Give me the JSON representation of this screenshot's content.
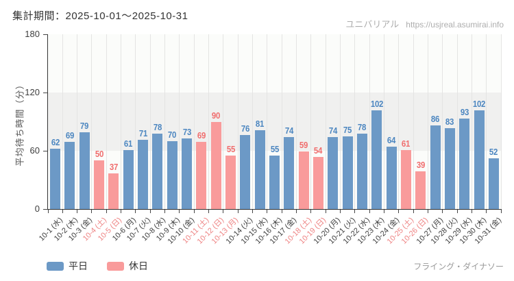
{
  "title": "集計期間：2025-10-01～2025-10-31",
  "watermark": {
    "brand": "ユニバリアル",
    "url": "https://usjreal.asumirai.info"
  },
  "footer": {
    "attraction": "フライング・ダイナソー"
  },
  "legend": {
    "items": [
      {
        "label": "平日",
        "color": "#6c99c6"
      },
      {
        "label": "休日",
        "color": "#f99b9b"
      }
    ]
  },
  "colors": {
    "weekday_bar": "#6c99c6",
    "holiday_bar": "#f99b9b",
    "weekday_value_label": "#4c86c0",
    "holiday_value_label": "#f06e6e",
    "weekday_axis_label": "#3d3d3d",
    "holiday_axis_label": "#ee8383",
    "axis_line": "#333333",
    "band_light": "#fbfcfa",
    "band_gray": "#f0f0ef",
    "gridline": "#e4e4e3",
    "watermark_text": "#adadad",
    "footer_text": "#999999"
  },
  "chart_data": {
    "type": "bar",
    "title": "集計期間：2025-10-01～2025-10-31",
    "xlabel": "",
    "ylabel": "平均待ち時間（分）",
    "ylim": [
      0,
      180
    ],
    "y_ticks": [
      0,
      60,
      120,
      180
    ],
    "grid": "vertical gridlines at category boundaries; alternating horizontal bands every 60 units",
    "legend_position": "bottom-left",
    "value_labels": "above bars",
    "x_tick_label_rotation": -45,
    "categories": [
      "10-1 (水)",
      "10-2 (木)",
      "10-3 (金)",
      "10-4 (土)",
      "10-5 (日)",
      "10-6 (月)",
      "10-7 (火)",
      "10-8 (水)",
      "10-9 (木)",
      "10-10 (金)",
      "10-11 (土)",
      "10-12 (日)",
      "10-13 (月)",
      "10-14 (火)",
      "10-15 (水)",
      "10-16 (木)",
      "10-17 (金)",
      "10-18 (土)",
      "10-19 (日)",
      "10-20 (月)",
      "10-21 (火)",
      "10-22 (水)",
      "10-23 (木)",
      "10-24 (金)",
      "10-25 (土)",
      "10-26 (日)",
      "10-27 (月)",
      "10-28 (火)",
      "10-29 (水)",
      "10-30 (木)",
      "10-31 (金)"
    ],
    "values": [
      62,
      69,
      79,
      50,
      37,
      61,
      71,
      78,
      70,
      73,
      69,
      90,
      55,
      76,
      81,
      55,
      74,
      59,
      54,
      74,
      75,
      78,
      102,
      64,
      61,
      39,
      86,
      83,
      93,
      102,
      52
    ],
    "holiday_flags": [
      false,
      false,
      false,
      true,
      true,
      false,
      false,
      false,
      false,
      false,
      true,
      true,
      true,
      false,
      false,
      false,
      false,
      true,
      true,
      false,
      false,
      false,
      false,
      false,
      true,
      true,
      false,
      false,
      false,
      false,
      false
    ],
    "series_legend": [
      "平日",
      "休日"
    ]
  }
}
